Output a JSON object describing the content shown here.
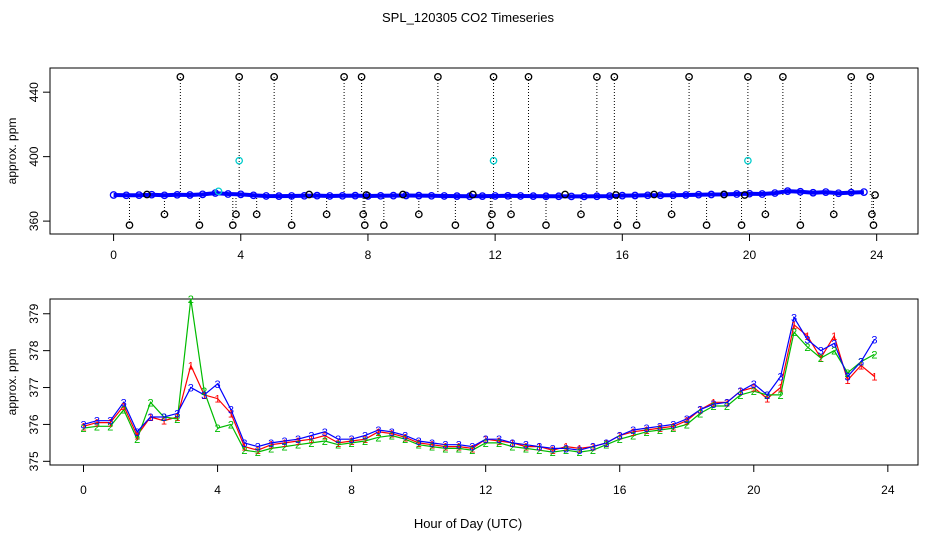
{
  "title": "SPL_120305  CO2 Timeseries",
  "xlabel": "Hour of Day (UTC)",
  "chart_data": [
    {
      "type": "scatter",
      "ylabel": "approx. ppm",
      "xlim": [
        -2,
        25.3
      ],
      "ylim": [
        352,
        455
      ],
      "xticks": [
        0,
        4,
        8,
        12,
        16,
        20,
        24
      ],
      "yticks": [
        360,
        400,
        440
      ],
      "series": [
        {
          "name": "blue",
          "color": "#0000ff",
          "points": [
            [
              0.0,
              376.2
            ],
            [
              0.4,
              376.0
            ],
            [
              0.8,
              376.1
            ],
            [
              1.2,
              376.4
            ],
            [
              1.6,
              376.0
            ],
            [
              2.0,
              376.3
            ],
            [
              2.4,
              376.2
            ],
            [
              2.8,
              376.6
            ],
            [
              3.2,
              377.4
            ],
            [
              3.6,
              376.8
            ],
            [
              4.0,
              376.6
            ],
            [
              4.4,
              376.0
            ],
            [
              4.8,
              375.6
            ],
            [
              5.2,
              375.5
            ],
            [
              5.6,
              375.6
            ],
            [
              6.0,
              375.7
            ],
            [
              6.4,
              375.8
            ],
            [
              6.8,
              375.6
            ],
            [
              7.2,
              375.7
            ],
            [
              7.6,
              375.8
            ],
            [
              8.0,
              375.6
            ],
            [
              8.4,
              375.7
            ],
            [
              8.8,
              375.8
            ],
            [
              9.2,
              375.9
            ],
            [
              9.6,
              375.8
            ],
            [
              10.0,
              375.7
            ],
            [
              10.4,
              375.6
            ],
            [
              10.8,
              375.5
            ],
            [
              11.2,
              375.4
            ],
            [
              11.6,
              375.5
            ],
            [
              12.0,
              375.6
            ],
            [
              12.4,
              375.7
            ],
            [
              12.8,
              375.6
            ],
            [
              13.2,
              375.5
            ],
            [
              13.6,
              375.4
            ],
            [
              14.0,
              375.4
            ],
            [
              14.4,
              375.3
            ],
            [
              14.8,
              375.3
            ],
            [
              15.2,
              375.4
            ],
            [
              15.6,
              375.5
            ],
            [
              16.0,
              375.8
            ],
            [
              16.4,
              375.9
            ],
            [
              16.8,
              376.0
            ],
            [
              17.2,
              376.0
            ],
            [
              17.6,
              376.1
            ],
            [
              18.0,
              376.2
            ],
            [
              18.4,
              376.4
            ],
            [
              18.8,
              376.5
            ],
            [
              19.2,
              376.6
            ],
            [
              19.6,
              376.8
            ],
            [
              20.0,
              377.0
            ],
            [
              20.4,
              376.8
            ],
            [
              20.8,
              377.4
            ],
            [
              21.2,
              378.6
            ],
            [
              21.6,
              378.2
            ],
            [
              22.0,
              377.6
            ],
            [
              22.4,
              378.0
            ],
            [
              22.8,
              377.3
            ],
            [
              23.2,
              377.7
            ],
            [
              23.6,
              378.0
            ]
          ]
        },
        {
          "name": "cyan",
          "color": "#00cccc",
          "points": [
            [
              3.95,
              397.5
            ],
            [
              11.95,
              397.5
            ],
            [
              19.95,
              397.5
            ],
            [
              3.3,
              378.5
            ]
          ]
        },
        {
          "name": "black",
          "color": "#000000",
          "points": [
            [
              0.5,
              357.5
            ],
            [
              1.05,
              376.5
            ],
            [
              1.6,
              364.2
            ],
            [
              2.1,
              449.5
            ],
            [
              2.7,
              357.5
            ],
            [
              3.75,
              357.5
            ],
            [
              3.85,
              364.2
            ],
            [
              3.95,
              449.5
            ],
            [
              4.5,
              364.2
            ],
            [
              5.05,
              449.5
            ],
            [
              5.6,
              357.5
            ],
            [
              6.15,
              376.5
            ],
            [
              6.7,
              364.2
            ],
            [
              7.25,
              449.5
            ],
            [
              7.8,
              449.5
            ],
            [
              7.85,
              364.2
            ],
            [
              7.9,
              357.5
            ],
            [
              7.95,
              376.2
            ],
            [
              8.5,
              357.5
            ],
            [
              9.1,
              376.5
            ],
            [
              9.6,
              364.2
            ],
            [
              10.2,
              449.5
            ],
            [
              10.75,
              357.5
            ],
            [
              11.3,
              376.5
            ],
            [
              11.85,
              357.5
            ],
            [
              11.9,
              364.2
            ],
            [
              11.95,
              449.5
            ],
            [
              12.5,
              364.2
            ],
            [
              13.05,
              449.5
            ],
            [
              13.6,
              357.5
            ],
            [
              14.2,
              376.5
            ],
            [
              14.7,
              364.2
            ],
            [
              15.2,
              449.5
            ],
            [
              15.75,
              449.5
            ],
            [
              15.8,
              376.2
            ],
            [
              15.85,
              357.5
            ],
            [
              16.45,
              357.5
            ],
            [
              17.0,
              376.5
            ],
            [
              17.55,
              364.2
            ],
            [
              18.1,
              449.5
            ],
            [
              18.65,
              357.5
            ],
            [
              19.2,
              376.5
            ],
            [
              19.75,
              357.5
            ],
            [
              19.85,
              376.2
            ],
            [
              19.95,
              449.5
            ],
            [
              20.5,
              364.2
            ],
            [
              21.05,
              449.5
            ],
            [
              21.6,
              357.5
            ],
            [
              22.65,
              364.2
            ],
            [
              23.2,
              449.5
            ],
            [
              23.8,
              449.5
            ],
            [
              23.85,
              364.2
            ],
            [
              23.9,
              357.5
            ],
            [
              23.95,
              376.2
            ]
          ]
        }
      ]
    },
    {
      "type": "line",
      "ylabel": "approx. ppm",
      "xlim": [
        -1.0,
        24.9
      ],
      "ylim": [
        374.9,
        379.4
      ],
      "xticks": [
        0,
        4,
        8,
        12,
        16,
        20,
        24
      ],
      "yticks": [
        375,
        376,
        377,
        378,
        379
      ],
      "series": [
        {
          "name": "1",
          "color": "#ff0000",
          "x": [
            0.0,
            0.4,
            0.8,
            1.2,
            1.6,
            2.0,
            2.4,
            2.8,
            3.2,
            3.6,
            4.0,
            4.4,
            4.8,
            5.2,
            5.6,
            6.0,
            6.4,
            6.8,
            7.2,
            7.6,
            8.0,
            8.4,
            8.8,
            9.2,
            9.6,
            10.0,
            10.4,
            10.8,
            11.2,
            11.6,
            12.0,
            12.4,
            12.8,
            13.2,
            13.6,
            14.0,
            14.4,
            14.8,
            15.2,
            15.6,
            16.0,
            16.4,
            16.8,
            17.2,
            17.6,
            18.0,
            18.4,
            18.8,
            19.2,
            19.6,
            20.0,
            20.4,
            20.8,
            21.2,
            21.6,
            22.0,
            22.4,
            22.8,
            23.2,
            23.6
          ],
          "y": [
            375.95,
            376.05,
            376.05,
            376.5,
            375.7,
            376.2,
            376.1,
            376.2,
            377.6,
            376.8,
            376.7,
            376.3,
            375.4,
            375.3,
            375.45,
            375.5,
            375.55,
            375.6,
            375.7,
            375.5,
            375.55,
            375.6,
            375.8,
            375.75,
            375.65,
            375.5,
            375.45,
            375.4,
            375.4,
            375.35,
            375.6,
            375.55,
            375.5,
            375.4,
            375.4,
            375.3,
            375.4,
            375.35,
            375.4,
            375.5,
            375.7,
            375.8,
            375.85,
            375.9,
            375.95,
            376.1,
            376.4,
            376.6,
            376.6,
            376.9,
            377.0,
            376.7,
            377.0,
            378.7,
            378.4,
            377.8,
            378.4,
            377.2,
            377.6,
            377.3
          ]
        },
        {
          "name": "2",
          "color": "#00bb00",
          "x": [
            0.0,
            0.4,
            0.8,
            1.2,
            1.6,
            2.0,
            2.4,
            2.8,
            3.2,
            3.6,
            4.0,
            4.4,
            4.8,
            5.2,
            5.6,
            6.0,
            6.4,
            6.8,
            7.2,
            7.6,
            8.0,
            8.4,
            8.8,
            9.2,
            9.6,
            10.0,
            10.4,
            10.8,
            11.2,
            11.6,
            12.0,
            12.4,
            12.8,
            13.2,
            13.6,
            14.0,
            14.4,
            14.8,
            15.2,
            15.6,
            16.0,
            16.4,
            16.8,
            17.2,
            17.6,
            18.0,
            18.4,
            18.8,
            19.2,
            19.6,
            20.0,
            20.4,
            20.8,
            21.2,
            21.6,
            22.0,
            22.4,
            22.8,
            23.2,
            23.6
          ],
          "y": [
            375.9,
            375.95,
            375.95,
            376.4,
            375.6,
            376.6,
            376.2,
            376.15,
            379.4,
            376.9,
            375.9,
            376.0,
            375.3,
            375.25,
            375.35,
            375.4,
            375.45,
            375.5,
            375.55,
            375.45,
            375.5,
            375.55,
            375.65,
            375.7,
            375.6,
            375.45,
            375.4,
            375.35,
            375.35,
            375.3,
            375.5,
            375.5,
            375.4,
            375.35,
            375.3,
            375.25,
            375.3,
            375.25,
            375.3,
            375.45,
            375.6,
            375.7,
            375.8,
            375.85,
            375.9,
            376.0,
            376.3,
            376.5,
            376.5,
            376.8,
            376.9,
            376.8,
            376.8,
            378.5,
            378.1,
            377.8,
            378.0,
            377.4,
            377.7,
            377.9
          ]
        },
        {
          "name": "3",
          "color": "#0000ff",
          "x": [
            0.0,
            0.4,
            0.8,
            1.2,
            1.6,
            2.0,
            2.4,
            2.8,
            3.2,
            3.6,
            4.0,
            4.4,
            4.8,
            5.2,
            5.6,
            6.0,
            6.4,
            6.8,
            7.2,
            7.6,
            8.0,
            8.4,
            8.8,
            9.2,
            9.6,
            10.0,
            10.4,
            10.8,
            11.2,
            11.6,
            12.0,
            12.4,
            12.8,
            13.2,
            13.6,
            14.0,
            14.4,
            14.8,
            15.2,
            15.6,
            16.0,
            16.4,
            16.8,
            17.2,
            17.6,
            18.0,
            18.4,
            18.8,
            19.2,
            19.6,
            20.0,
            20.4,
            20.8,
            21.2,
            21.6,
            22.0,
            22.4,
            22.8,
            23.2,
            23.6
          ],
          "y": [
            376.0,
            376.1,
            376.1,
            376.6,
            375.8,
            376.2,
            376.2,
            376.3,
            377.0,
            376.8,
            377.1,
            376.4,
            375.5,
            375.4,
            375.5,
            375.55,
            375.6,
            375.7,
            375.8,
            375.6,
            375.6,
            375.7,
            375.85,
            375.8,
            375.7,
            375.55,
            375.5,
            375.45,
            375.45,
            375.4,
            375.6,
            375.6,
            375.5,
            375.45,
            375.4,
            375.35,
            375.35,
            375.3,
            375.4,
            375.5,
            375.7,
            375.85,
            375.9,
            375.95,
            376.0,
            376.15,
            376.4,
            376.55,
            376.6,
            376.9,
            377.1,
            376.8,
            377.3,
            378.9,
            378.3,
            378.0,
            378.2,
            377.3,
            377.7,
            378.3
          ]
        }
      ]
    }
  ]
}
